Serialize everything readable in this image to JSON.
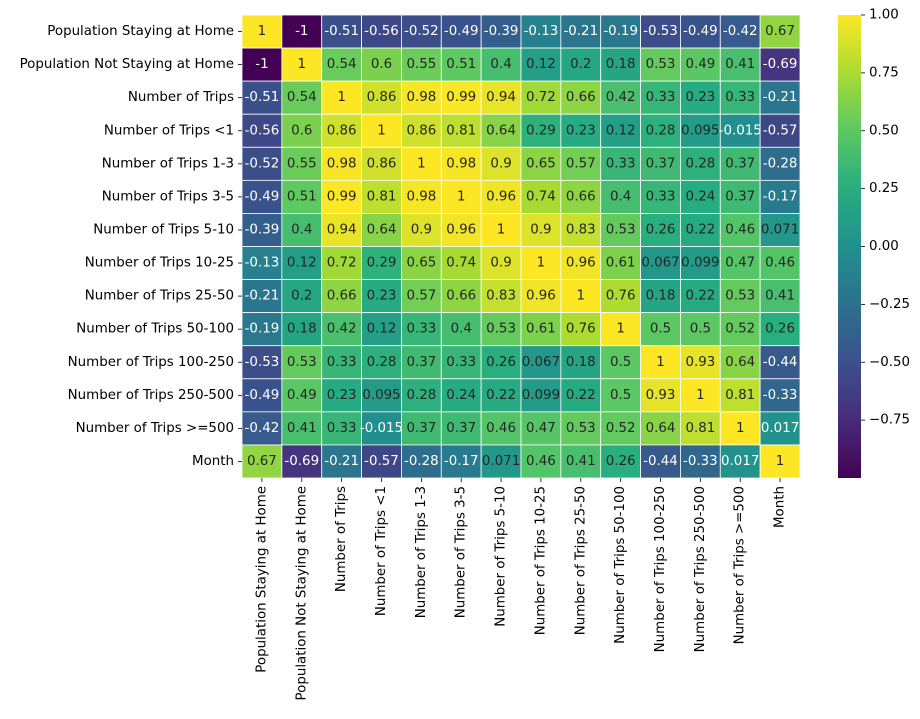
{
  "chart_data": {
    "type": "heatmap",
    "title": "",
    "xlabel": "",
    "ylabel": "",
    "row_labels": [
      "Population Staying at Home",
      "Population Not Staying at Home",
      "Number of Trips",
      "Number of Trips <1",
      "Number of Trips 1-3",
      "Number of Trips 3-5",
      "Number of Trips 5-10",
      "Number of Trips 10-25",
      "Number of Trips 25-50",
      "Number of Trips 50-100",
      "Number of Trips 100-250",
      "Number of Trips 250-500",
      "Number of Trips >=500",
      "Month"
    ],
    "col_labels": [
      "Population Staying at Home",
      "Population Not Staying at Home",
      "Number of Trips",
      "Number of Trips <1",
      "Number of Trips 1-3",
      "Number of Trips 3-5",
      "Number of Trips 5-10",
      "Number of Trips 10-25",
      "Number of Trips 25-50",
      "Number of Trips 50-100",
      "Number of Trips 100-250",
      "Number of Trips 250-500",
      "Number of Trips >=500",
      "Month"
    ],
    "values": [
      [
        1,
        -1,
        -0.51,
        -0.56,
        -0.52,
        -0.49,
        -0.39,
        -0.13,
        -0.21,
        -0.19,
        -0.53,
        -0.49,
        -0.42,
        0.67
      ],
      [
        -1,
        1,
        0.54,
        0.6,
        0.55,
        0.51,
        0.4,
        0.12,
        0.2,
        0.18,
        0.53,
        0.49,
        0.41,
        -0.69
      ],
      [
        -0.51,
        0.54,
        1,
        0.86,
        0.98,
        0.99,
        0.94,
        0.72,
        0.66,
        0.42,
        0.33,
        0.23,
        0.33,
        -0.21
      ],
      [
        -0.56,
        0.6,
        0.86,
        1,
        0.86,
        0.81,
        0.64,
        0.29,
        0.23,
        0.12,
        0.28,
        0.095,
        -0.015,
        -0.57
      ],
      [
        -0.52,
        0.55,
        0.98,
        0.86,
        1,
        0.98,
        0.9,
        0.65,
        0.57,
        0.33,
        0.37,
        0.28,
        0.37,
        -0.28
      ],
      [
        -0.49,
        0.51,
        0.99,
        0.81,
        0.98,
        1,
        0.96,
        0.74,
        0.66,
        0.4,
        0.33,
        0.24,
        0.37,
        -0.17
      ],
      [
        -0.39,
        0.4,
        0.94,
        0.64,
        0.9,
        0.96,
        1,
        0.9,
        0.83,
        0.53,
        0.26,
        0.22,
        0.46,
        0.071
      ],
      [
        -0.13,
        0.12,
        0.72,
        0.29,
        0.65,
        0.74,
        0.9,
        1,
        0.96,
        0.61,
        0.067,
        0.099,
        0.47,
        0.46
      ],
      [
        -0.21,
        0.2,
        0.66,
        0.23,
        0.57,
        0.66,
        0.83,
        0.96,
        1,
        0.76,
        0.18,
        0.22,
        0.53,
        0.41
      ],
      [
        -0.19,
        0.18,
        0.42,
        0.12,
        0.33,
        0.4,
        0.53,
        0.61,
        0.76,
        1,
        0.5,
        0.5,
        0.52,
        0.26
      ],
      [
        -0.53,
        0.53,
        0.33,
        0.28,
        0.37,
        0.33,
        0.26,
        0.067,
        0.18,
        0.5,
        1,
        0.93,
        0.64,
        -0.44
      ],
      [
        -0.49,
        0.49,
        0.23,
        0.095,
        0.28,
        0.24,
        0.22,
        0.099,
        0.22,
        0.5,
        0.93,
        1,
        0.81,
        -0.33
      ],
      [
        -0.42,
        0.41,
        0.33,
        -0.015,
        0.37,
        0.37,
        0.46,
        0.47,
        0.53,
        0.52,
        0.64,
        0.81,
        1,
        0.017
      ],
      [
        0.67,
        -0.69,
        -0.21,
        -0.57,
        -0.28,
        -0.17,
        0.071,
        0.46,
        0.41,
        0.26,
        -0.44,
        -0.33,
        0.017,
        1
      ]
    ],
    "colormap": "viridis",
    "vmin": -1,
    "vmax": 1,
    "colorbar_ticks": [
      1.0,
      0.75,
      0.5,
      0.25,
      0.0,
      -0.25,
      -0.5,
      -0.75
    ],
    "colorbar_tick_labels": [
      "1.00",
      "0.75",
      "0.50",
      "0.25",
      "0.00",
      "−0.25",
      "−0.50",
      "−0.75"
    ],
    "annotations": true,
    "grid_lines_color": "#ffffff",
    "legend": "colorbar-right"
  }
}
